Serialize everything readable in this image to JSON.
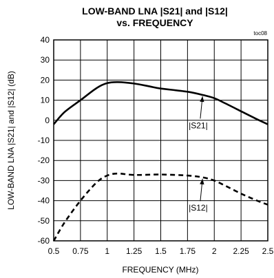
{
  "chart_data": {
    "type": "line",
    "title_line1": "LOW-BAND LNA |S21| and |S12|",
    "title_line2": "vs. FREQUENCY",
    "code": "toc08",
    "xlabel": "FREQUENCY (MHz)",
    "ylabel": "LOW-BAND LNA |S21| and |S12|  (dB)",
    "xlim": [
      0.5,
      2.5
    ],
    "ylim": [
      -60,
      40
    ],
    "grid": true,
    "x_ticks": [
      "0.5",
      "0.75",
      "1",
      "1.25",
      "1.5",
      "1.75",
      "2",
      "2.25",
      "2.5"
    ],
    "y_ticks": [
      "40",
      "30",
      "20",
      "10",
      "0",
      "-10",
      "-20",
      "-30",
      "-40",
      "-50",
      "-60"
    ],
    "series": [
      {
        "name": "|S21|",
        "style": "solid",
        "x": [
          0.5,
          0.6,
          0.75,
          0.9,
          1.0,
          1.1,
          1.25,
          1.4,
          1.5,
          1.75,
          1.9,
          2.0,
          2.1,
          2.25,
          2.4,
          2.5
        ],
        "y": [
          -2,
          4,
          10,
          16,
          18.5,
          19,
          18.3,
          16.8,
          15.8,
          14.2,
          12.5,
          11,
          8.5,
          4.5,
          0.5,
          -2
        ]
      },
      {
        "name": "|S12|",
        "style": "dashed",
        "x": [
          0.5,
          0.6,
          0.75,
          0.9,
          1.0,
          1.1,
          1.25,
          1.5,
          1.75,
          1.9,
          2.0,
          2.1,
          2.25,
          2.4,
          2.5
        ],
        "y": [
          -60,
          -51,
          -40,
          -31,
          -27.5,
          -26.5,
          -27.2,
          -27,
          -27.5,
          -28.5,
          -30,
          -32.5,
          -36.5,
          -40,
          -42
        ]
      }
    ],
    "annotations": [
      {
        "text": "|S21|",
        "series": 0,
        "arrow_to_x": 1.89,
        "label_x": 1.85,
        "label_y": -4
      },
      {
        "text": "|S12|",
        "series": 1,
        "arrow_to_x": 1.89,
        "label_x": 1.85,
        "label_y": -45
      }
    ],
    "colors": {
      "line": "#000000",
      "grid": "#000000",
      "background": "#ffffff"
    }
  }
}
